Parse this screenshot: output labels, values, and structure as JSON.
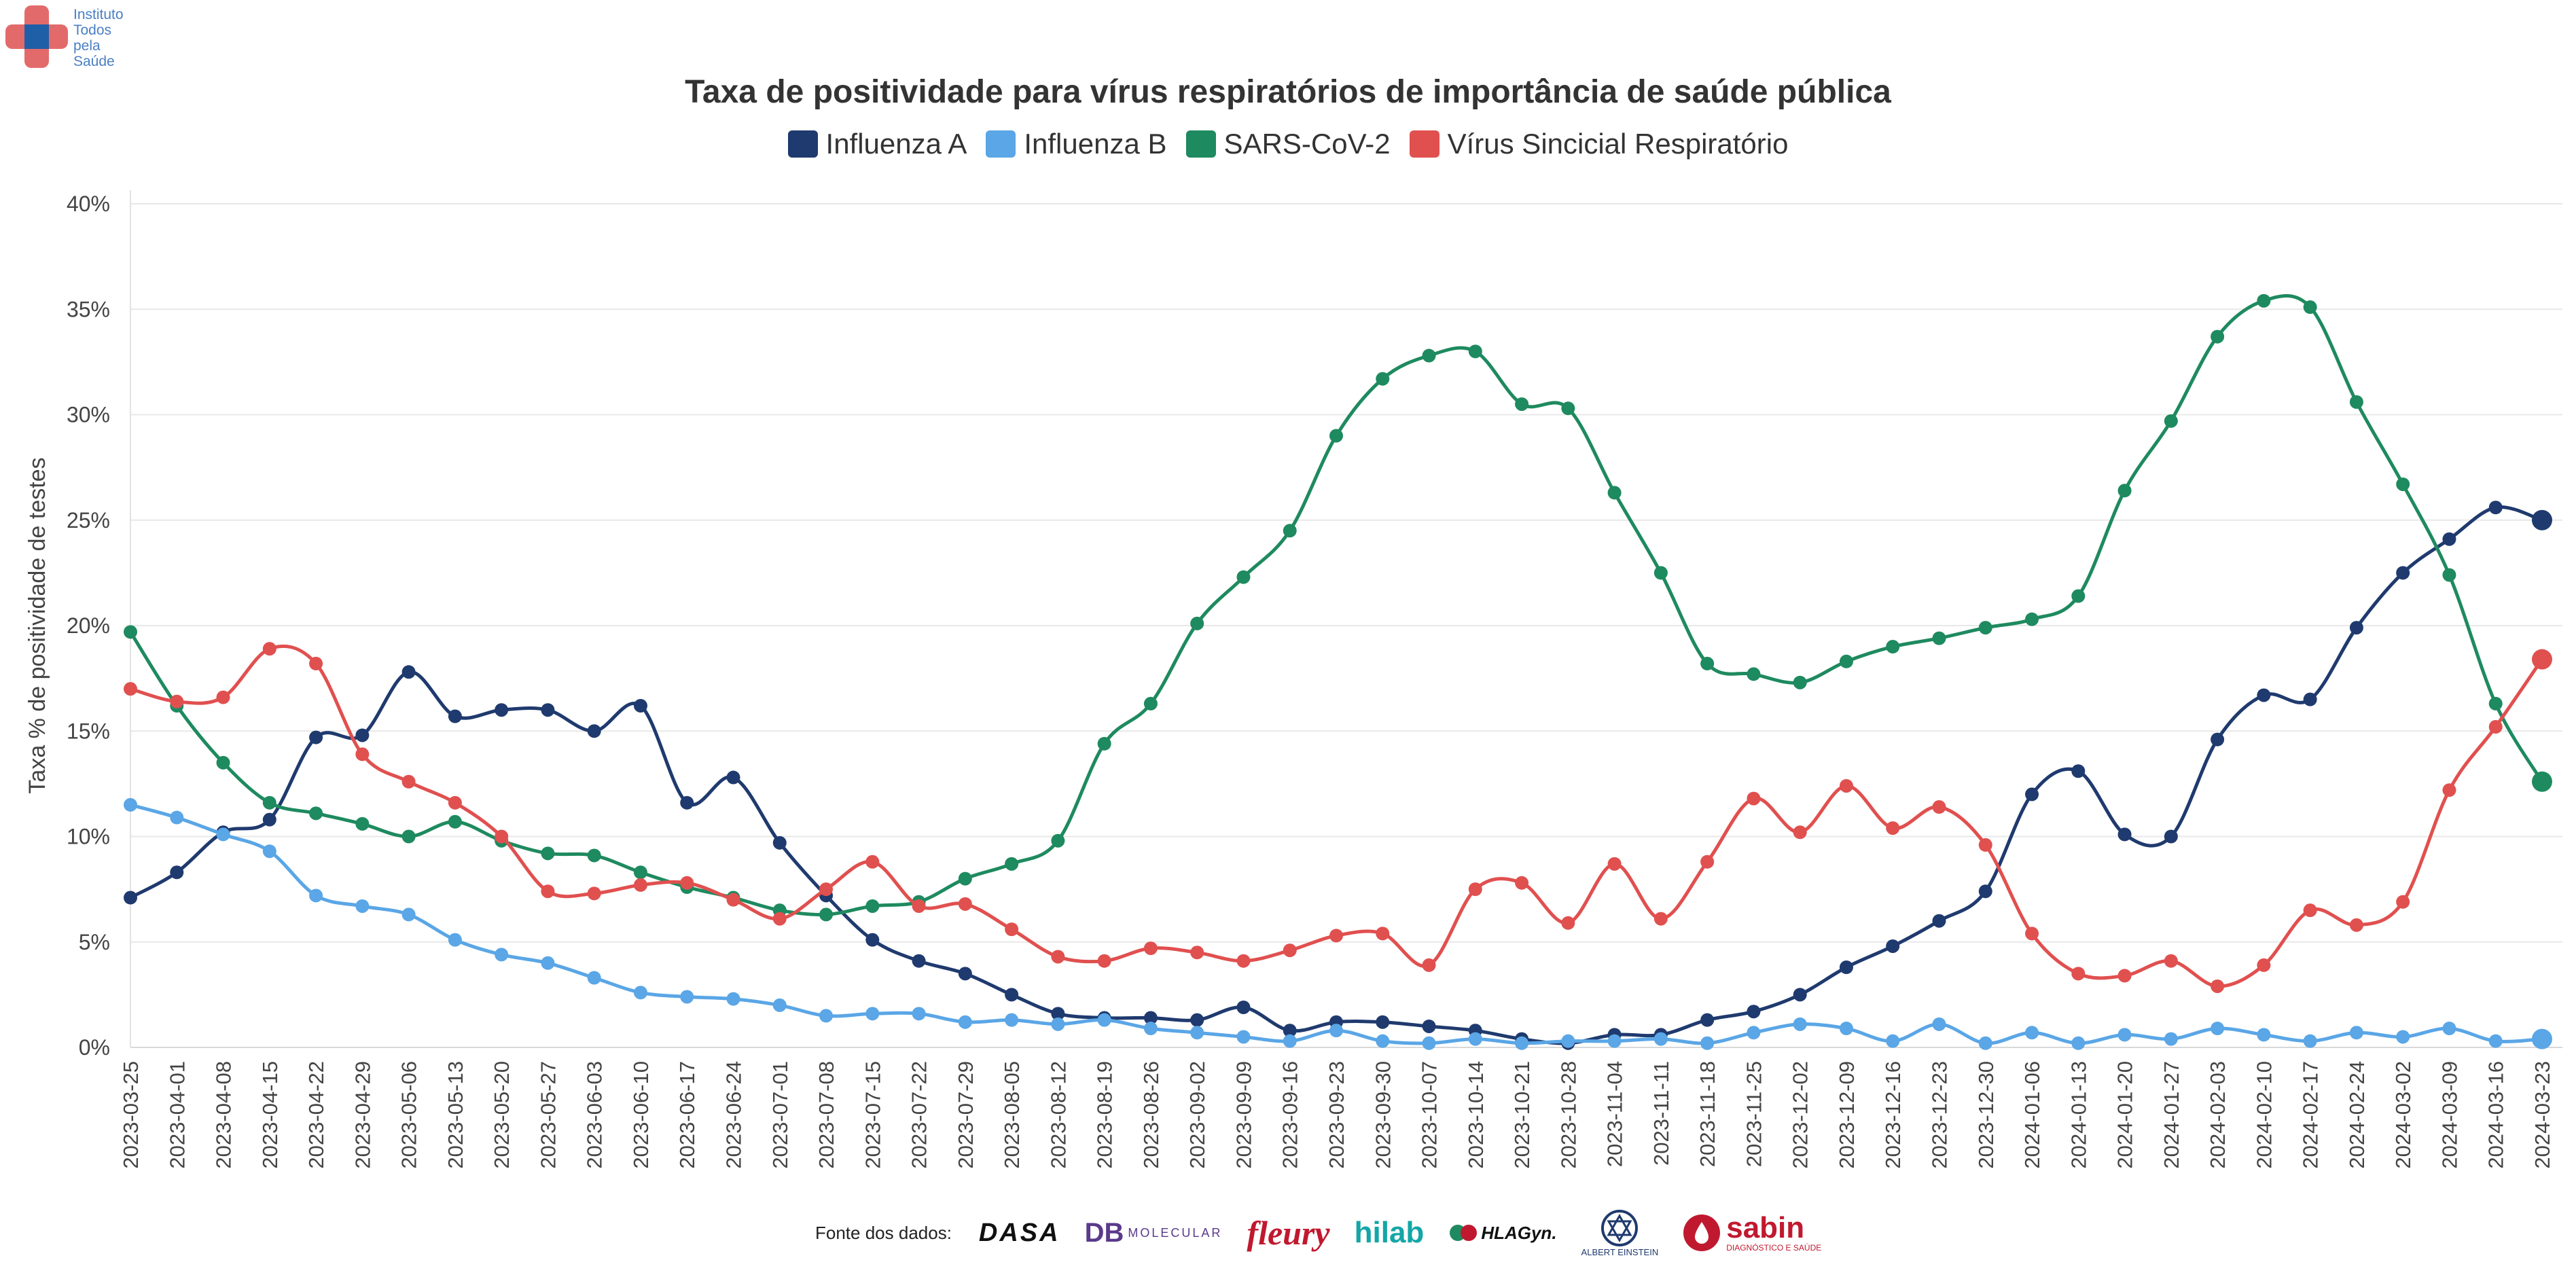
{
  "logo": {
    "lines": [
      "Instituto",
      "Todos",
      "pela",
      "Saúde"
    ]
  },
  "chart_data": {
    "type": "line",
    "title": "Taxa de positividade para vírus respiratórios de importância de saúde pública",
    "ylabel": "Taxa % de positividade de testes",
    "xlabel": "",
    "ylim": [
      0,
      40
    ],
    "yticks": [
      "0%",
      "5%",
      "10%",
      "15%",
      "20%",
      "25%",
      "30%",
      "35%",
      "40%"
    ],
    "grid": true,
    "legend_position": "top-center",
    "categories": [
      "2023-03-25",
      "2023-04-01",
      "2023-04-08",
      "2023-04-15",
      "2023-04-22",
      "2023-04-29",
      "2023-05-06",
      "2023-05-13",
      "2023-05-20",
      "2023-05-27",
      "2023-06-03",
      "2023-06-10",
      "2023-06-17",
      "2023-06-24",
      "2023-07-01",
      "2023-07-08",
      "2023-07-15",
      "2023-07-22",
      "2023-07-29",
      "2023-08-05",
      "2023-08-12",
      "2023-08-19",
      "2023-08-26",
      "2023-09-02",
      "2023-09-09",
      "2023-09-16",
      "2023-09-23",
      "2023-09-30",
      "2023-10-07",
      "2023-10-14",
      "2023-10-21",
      "2023-10-28",
      "2023-11-04",
      "2023-11-11",
      "2023-11-18",
      "2023-11-25",
      "2023-12-02",
      "2023-12-09",
      "2023-12-16",
      "2023-12-23",
      "2023-12-30",
      "2024-01-06",
      "2024-01-13",
      "2024-01-20",
      "2024-01-27",
      "2024-02-03",
      "2024-02-10",
      "2024-02-17",
      "2024-02-24",
      "2024-03-02",
      "2024-03-09",
      "2024-03-16",
      "2024-03-23"
    ],
    "series": [
      {
        "name": "Influenza A",
        "color": "#1f3a6e",
        "values": [
          7.1,
          8.3,
          10.2,
          10.8,
          14.7,
          14.8,
          17.8,
          15.7,
          16.0,
          16.0,
          15.0,
          16.2,
          11.6,
          12.8,
          9.7,
          7.2,
          5.1,
          4.1,
          3.5,
          2.5,
          1.6,
          1.4,
          1.4,
          1.3,
          1.9,
          0.8,
          1.2,
          1.2,
          1.0,
          0.8,
          0.4,
          0.2,
          0.6,
          0.6,
          1.3,
          1.7,
          2.5,
          3.8,
          4.8,
          6.0,
          7.4,
          12.0,
          13.1,
          10.1,
          10.0,
          14.6,
          16.7,
          16.5,
          19.9,
          22.5,
          24.1,
          25.6,
          25.0
        ]
      },
      {
        "name": "Influenza B",
        "color": "#5aa6e6",
        "values": [
          11.5,
          10.9,
          10.1,
          9.3,
          7.2,
          6.7,
          6.3,
          5.1,
          4.4,
          4.0,
          3.3,
          2.6,
          2.4,
          2.3,
          2.0,
          1.5,
          1.6,
          1.6,
          1.2,
          1.3,
          1.1,
          1.3,
          0.9,
          0.7,
          0.5,
          0.3,
          0.8,
          0.3,
          0.2,
          0.4,
          0.2,
          0.3,
          0.3,
          0.4,
          0.2,
          0.7,
          1.1,
          0.9,
          0.3,
          1.1,
          0.2,
          0.7,
          0.2,
          0.6,
          0.4,
          0.9,
          0.6,
          0.3,
          0.7,
          0.5,
          0.9,
          0.3,
          0.4
        ]
      },
      {
        "name": "SARS-CoV-2",
        "color": "#1e8a5f",
        "values": [
          19.7,
          16.2,
          13.5,
          11.6,
          11.1,
          10.6,
          10.0,
          10.7,
          9.8,
          9.2,
          9.1,
          8.3,
          7.6,
          7.1,
          6.5,
          6.3,
          6.7,
          6.9,
          8.0,
          8.7,
          9.8,
          14.4,
          16.3,
          20.1,
          22.3,
          24.5,
          29.0,
          31.7,
          32.8,
          33.0,
          30.5,
          30.3,
          26.3,
          22.5,
          18.2,
          17.7,
          17.3,
          18.3,
          19.0,
          19.4,
          19.9,
          20.3,
          21.4,
          26.4,
          29.7,
          33.7,
          35.4,
          35.1,
          30.6,
          26.7,
          22.4,
          16.3,
          12.6
        ]
      },
      {
        "name": "Vírus Sincicial Respiratório",
        "color": "#e0504f",
        "values": [
          17.0,
          16.4,
          16.6,
          18.9,
          18.2,
          13.9,
          12.6,
          11.6,
          10.0,
          7.4,
          7.3,
          7.7,
          7.8,
          7.0,
          6.1,
          7.5,
          8.8,
          6.7,
          6.8,
          5.6,
          4.3,
          4.1,
          4.7,
          4.5,
          4.1,
          4.6,
          5.3,
          5.4,
          3.9,
          7.5,
          7.8,
          5.9,
          8.7,
          6.1,
          8.8,
          11.8,
          10.2,
          12.4,
          10.4,
          11.4,
          9.6,
          5.4,
          3.5,
          3.4,
          4.1,
          2.9,
          3.9,
          6.5,
          5.8,
          6.9,
          12.2,
          15.2,
          18.4
        ]
      }
    ]
  },
  "footer": {
    "label": "Fonte dos dados:",
    "sources": [
      {
        "name": "dasa",
        "text": "DASA",
        "color": "#111111"
      },
      {
        "name": "db-molecular",
        "text": "DB",
        "sub": "MOLECULAR",
        "color": "#5a3a8a"
      },
      {
        "name": "fleury",
        "text": "fleury",
        "color": "#c0192f"
      },
      {
        "name": "hilab",
        "text": "hilab",
        "color": "#14a6a6"
      },
      {
        "name": "hlagyn",
        "text": "HLAGyn.",
        "color": "#111111"
      },
      {
        "name": "einstein",
        "text": "ALBERT EINSTEIN",
        "color": "#1f3a6e"
      },
      {
        "name": "sabin",
        "text": "sabin",
        "sub": "DIAGNÓSTICO E SAÚDE",
        "color": "#c0192f"
      }
    ]
  }
}
